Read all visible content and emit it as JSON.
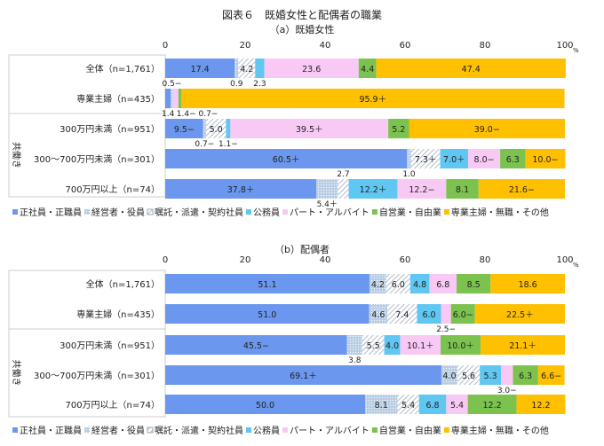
{
  "title": "図表６　既婚女性と配偶者の職業",
  "unit": "%",
  "colors": [
    "#6b97ee",
    "#b9cde4",
    "#ffffff",
    "#5fc7f2",
    "#f8c9f4",
    "#7cc24f",
    "#ffc000"
  ],
  "legend": [
    "正社員・正職員",
    "経営者・役員",
    "嘱託・派遣・契約社員",
    "公務員",
    "パート・アルバイト",
    "自営業・自由業",
    "専業主婦・無職・その他"
  ],
  "group_label": "共働き",
  "chart_data": [
    {
      "type": "stacked-bar-horizontal",
      "title": "（a）既婚女性",
      "xlim": [
        0,
        100
      ],
      "xticks": [
        "0",
        "20",
        "40",
        "60",
        "80",
        "100"
      ],
      "categories": [
        "全体（n=1,761）",
        "専業主婦（n=435）",
        "300万円未満（n=951）",
        "300〜700万円未満（n=301）",
        "700万円以上（n=74）"
      ],
      "values": [
        [
          17.4,
          0.9,
          4.2,
          2.3,
          23.6,
          4.4,
          47.4
        ],
        [
          1.4,
          0.5,
          0.0,
          0.0,
          1.4,
          0.7,
          95.9
        ],
        [
          9.5,
          0.7,
          5.0,
          1.1,
          39.5,
          5.2,
          39.0
        ],
        [
          60.5,
          1.0,
          7.3,
          7.0,
          8.0,
          6.3,
          10.0
        ],
        [
          37.8,
          5.4,
          2.7,
          12.2,
          12.2,
          8.1,
          21.6
        ]
      ],
      "labels": [
        [
          "17.4",
          "0.9",
          "4.2",
          "2.3",
          "23.6",
          "4.4",
          "47.4"
        ],
        [
          "1.4",
          "0.5−",
          "",
          "",
          "1.4−",
          "0.7−",
          "95.9＋"
        ],
        [
          "9.5−",
          "0.7−",
          "5.0",
          "1.1−",
          "39.5＋",
          "5.2",
          "39.0−"
        ],
        [
          "60.5＋",
          "1.0",
          "7.3＋",
          "7.0＋",
          "8.0−",
          "6.3",
          "10.0−"
        ],
        [
          "37.8＋",
          "5.4＋",
          "2.7",
          "12.2＋",
          "12.2−",
          "8.1",
          "21.6−"
        ]
      ]
    },
    {
      "type": "stacked-bar-horizontal",
      "title": "（b）配偶者",
      "xlim": [
        0,
        100
      ],
      "xticks": [
        "0",
        "20",
        "40",
        "60",
        "80",
        "100"
      ],
      "categories": [
        "全体（n=1,761）",
        "専業主婦（n=435）",
        "300万円未満（n=951）",
        "300〜700万円未満（n=301）",
        "700万円以上（n=74）"
      ],
      "values": [
        [
          51.1,
          4.2,
          6.0,
          4.8,
          6.8,
          8.5,
          18.6
        ],
        [
          51.0,
          4.6,
          7.4,
          6.0,
          2.5,
          6.0,
          22.5
        ],
        [
          45.5,
          3.8,
          5.5,
          4.0,
          10.1,
          10.0,
          21.1
        ],
        [
          69.1,
          4.0,
          5.6,
          5.3,
          3.0,
          6.3,
          6.6
        ],
        [
          50.0,
          8.1,
          5.4,
          6.8,
          5.4,
          12.2,
          12.2
        ]
      ],
      "labels": [
        [
          "51.1",
          "4.2",
          "6.0",
          "4.8",
          "6.8",
          "8.5",
          "18.6"
        ],
        [
          "51.0",
          "4.6",
          "7.4",
          "6.0",
          "2.5−",
          "6.0−",
          "22.5＋"
        ],
        [
          "45.5−",
          "3.8",
          "5.5",
          "4.0",
          "10.1＋",
          "10.0＋",
          "21.1＋"
        ],
        [
          "69.1＋",
          "4.0",
          "5.6",
          "5.3",
          "3.0−",
          "6.3",
          "6.6−"
        ],
        [
          "50.0",
          "8.1",
          "5.4",
          "6.8",
          "5.4",
          "12.2",
          "12.2"
        ]
      ]
    }
  ]
}
